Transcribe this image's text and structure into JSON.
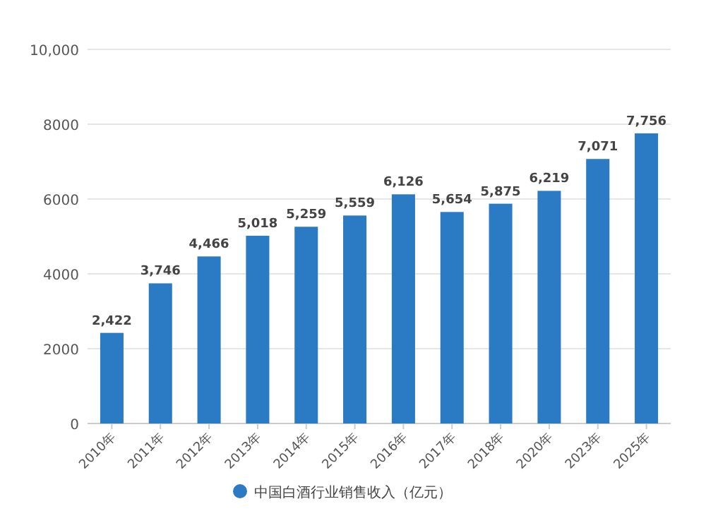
{
  "chart_data": {
    "type": "bar",
    "categories": [
      "2010年",
      "2011年",
      "2012年",
      "2013年",
      "2014年",
      "2015年",
      "2016年",
      "2017年",
      "2018年",
      "2020年",
      "2023年",
      "2025年"
    ],
    "series": [
      {
        "name": "中国白酒行业销售收入（亿元）",
        "color": "#2b7bc4",
        "values": [
          2422,
          3746,
          4466,
          5018,
          5259,
          5559,
          6126,
          5654,
          5875,
          6219,
          7071,
          7756
        ],
        "value_labels": [
          "2,422",
          "3,746",
          "4,466",
          "5,018",
          "5,259",
          "5,559",
          "6,126",
          "5,654",
          "5,875",
          "6,219",
          "7,071",
          "7,756"
        ]
      }
    ],
    "ylim": [
      0,
      10000
    ],
    "yticks": [
      0,
      2000,
      4000,
      6000,
      8000,
      {
        "value": 10000,
        "label": "10,000"
      }
    ],
    "grid": "y",
    "legend": "bottom"
  }
}
